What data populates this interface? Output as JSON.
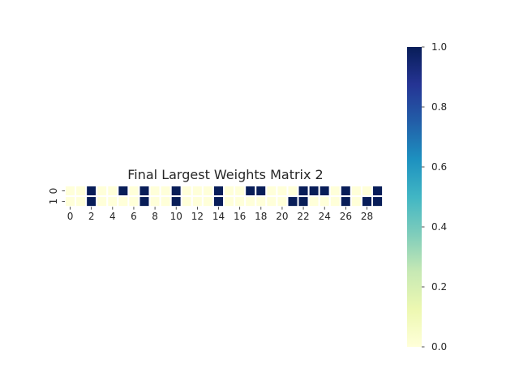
{
  "chart_data": {
    "type": "heatmap",
    "title": "Final Largest Weights Matrix 2",
    "xlabel": "",
    "ylabel": "",
    "x_tick_labels": [
      "0",
      "2",
      "4",
      "6",
      "8",
      "10",
      "12",
      "14",
      "16",
      "18",
      "20",
      "22",
      "24",
      "26",
      "28"
    ],
    "y_tick_labels": [
      "0",
      "1"
    ],
    "columns": 30,
    "rows": 2,
    "values": [
      [
        0,
        0,
        1,
        0,
        0,
        1,
        0,
        1,
        0,
        0,
        1,
        0,
        0,
        0,
        1,
        0,
        0,
        1,
        1,
        0,
        0,
        0,
        1,
        1,
        1,
        0,
        1,
        0,
        0,
        1
      ],
      [
        0,
        0,
        1,
        0,
        0,
        0,
        0,
        1,
        0,
        0,
        1,
        0,
        0,
        0,
        1,
        0,
        0,
        0,
        0,
        0,
        0,
        1,
        1,
        0,
        0,
        0,
        1,
        0,
        1,
        1
      ]
    ],
    "colormap": "YlGnBu",
    "color_low": "#ffffd9",
    "color_high": "#081d58",
    "colorbar": {
      "range": [
        0.0,
        1.0
      ],
      "tick_labels": [
        "0.0",
        "0.2",
        "0.4",
        "0.6",
        "0.8",
        "1.0"
      ]
    }
  }
}
